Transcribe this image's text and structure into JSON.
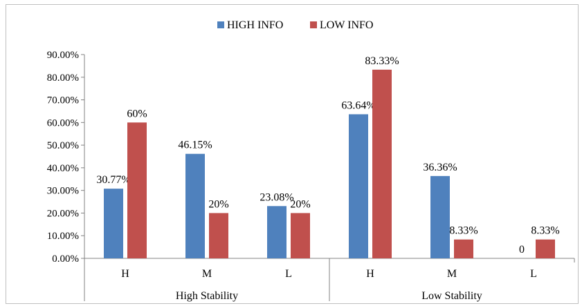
{
  "chart_data": {
    "type": "bar",
    "title": "",
    "xlabel": "",
    "ylabel": "",
    "ylim": [
      0,
      0.9
    ],
    "y_ticks": [
      "0.00%",
      "10.00%",
      "20.00%",
      "30.00%",
      "40.00%",
      "50.00%",
      "60.00%",
      "70.00%",
      "80.00%",
      "90.00%"
    ],
    "groups": [
      {
        "label": "High Stability",
        "categories": [
          "H",
          "M",
          "L"
        ]
      },
      {
        "label": "Low Stability",
        "categories": [
          "H",
          "M",
          "L"
        ]
      }
    ],
    "legend_position": "top",
    "grid": false,
    "series": [
      {
        "name": "HIGH INFO",
        "color": "#4f81bd",
        "values": [
          0.3077,
          0.4615,
          0.2308,
          0.6364,
          0.3636,
          0
        ],
        "labels": [
          "30.77%",
          "46.15%",
          "23.08%",
          "63.64%",
          "36.36%",
          "0"
        ]
      },
      {
        "name": "LOW INFO",
        "color": "#c0504d",
        "values": [
          0.6,
          0.2,
          0.2,
          0.8333,
          0.0833,
          0.0833
        ],
        "labels": [
          "60%",
          "20%",
          "20%",
          "83.33%",
          "8.33%",
          "8.33%"
        ]
      }
    ]
  }
}
